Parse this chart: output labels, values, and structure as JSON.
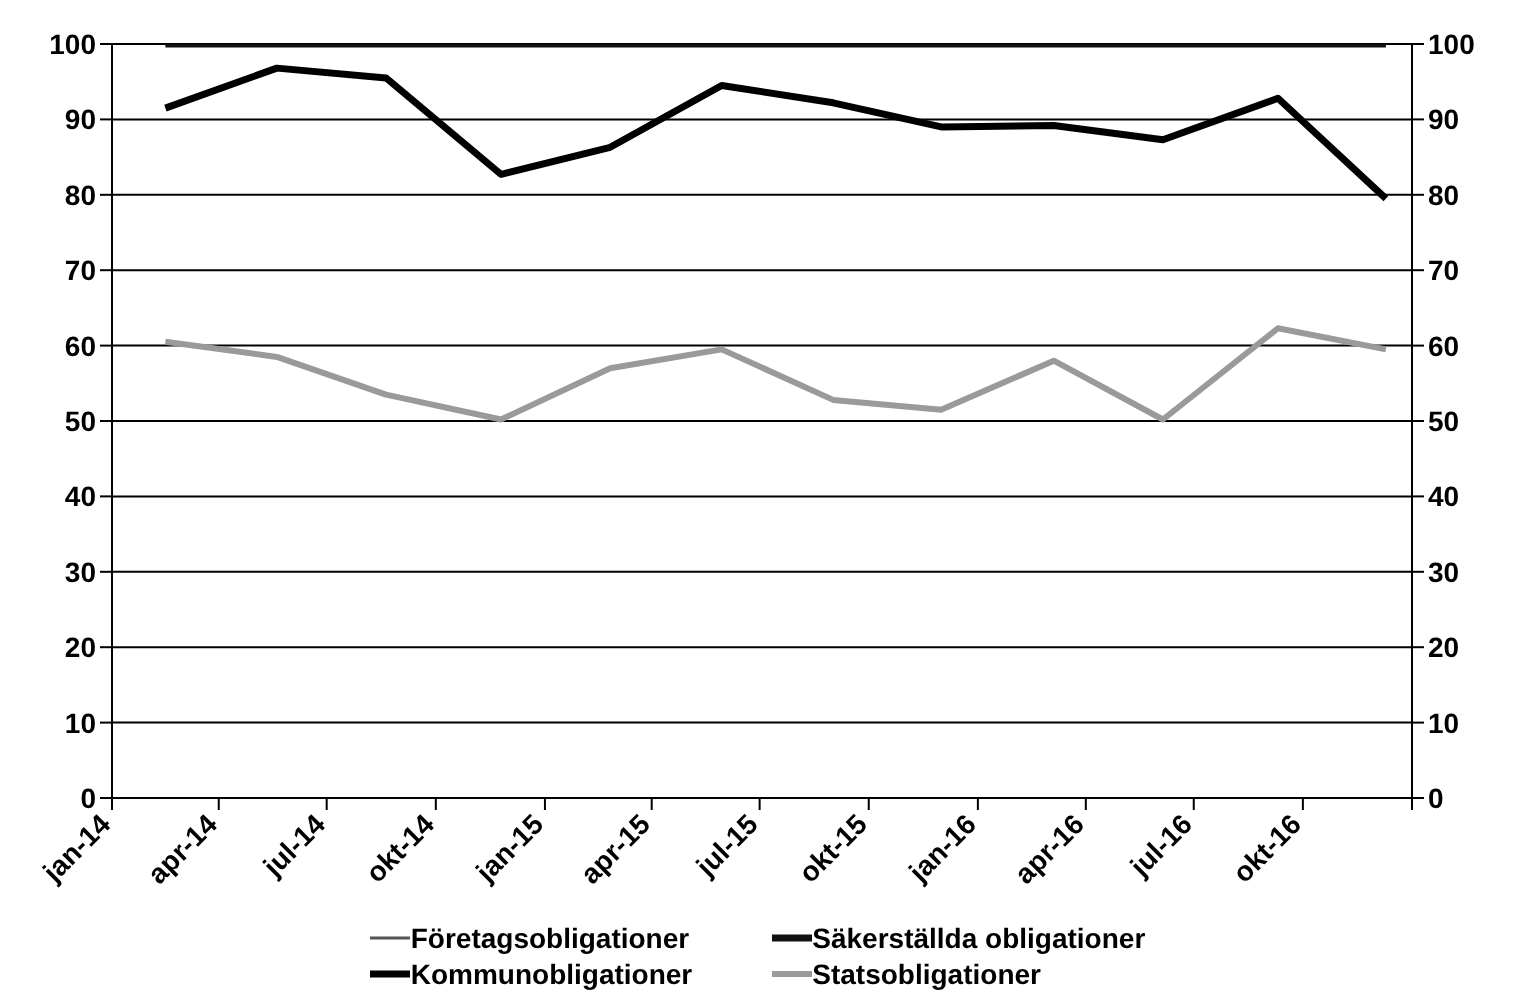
{
  "chart_data": {
    "type": "line",
    "x": [
      "2014-02-15",
      "2014-05-20",
      "2014-08-20",
      "2014-11-25",
      "2015-02-25",
      "2015-05-30",
      "2015-09-01",
      "2015-12-01",
      "2016-03-05",
      "2016-06-05",
      "2016-09-10",
      "2016-12-10"
    ],
    "series": [
      {
        "name": "Företagsobligationer",
        "color": "#555555",
        "values": [
          null,
          null,
          null,
          null,
          null,
          null,
          null,
          null,
          null,
          null,
          null,
          null
        ]
      },
      {
        "name": "Säkerställda obligationer",
        "color": "#111111",
        "values": [
          100,
          100,
          100,
          100,
          100,
          100,
          100,
          100,
          100,
          100,
          100,
          100
        ]
      },
      {
        "name": "Kommunobligationer",
        "color": "#000000",
        "values": [
          91.5,
          96.8,
          95.5,
          82.7,
          86.3,
          94.5,
          92.2,
          89,
          89.2,
          87.3,
          92.8,
          79.5
        ]
      },
      {
        "name": "Statsobligationer",
        "color": "#9a9a9a",
        "values": [
          60.5,
          58.5,
          53.5,
          50.2,
          57,
          59.5,
          52.8,
          51.5,
          58,
          50.2,
          62.3,
          59.5
        ]
      }
    ],
    "xlim": [
      "2014-01-01",
      "2017-01-01"
    ],
    "xticks": [
      {
        "value": "2014-01-01",
        "label": "jan-14"
      },
      {
        "value": "2014-04-01",
        "label": "apr-14"
      },
      {
        "value": "2014-07-01",
        "label": "jul-14"
      },
      {
        "value": "2014-10-01",
        "label": "okt-14"
      },
      {
        "value": "2015-01-01",
        "label": "jan-15"
      },
      {
        "value": "2015-04-01",
        "label": "apr-15"
      },
      {
        "value": "2015-07-01",
        "label": "jul-15"
      },
      {
        "value": "2015-10-01",
        "label": "okt-15"
      },
      {
        "value": "2016-01-01",
        "label": "jan-16"
      },
      {
        "value": "2016-04-01",
        "label": "apr-16"
      },
      {
        "value": "2016-07-01",
        "label": "jul-16"
      },
      {
        "value": "2016-10-01",
        "label": "okt-16"
      },
      {
        "value": "2017-01-01",
        "label": null
      }
    ],
    "ylim": [
      0,
      100
    ],
    "yticks": [
      0,
      10,
      20,
      30,
      40,
      50,
      60,
      70,
      80,
      90,
      100
    ],
    "y2lim": [
      0,
      100
    ],
    "y2ticks": [
      0,
      10,
      20,
      30,
      40,
      50,
      60,
      70,
      80,
      90,
      100
    ],
    "grid": "y",
    "legend": "bottom",
    "marker": "none",
    "line_style": "solid"
  }
}
